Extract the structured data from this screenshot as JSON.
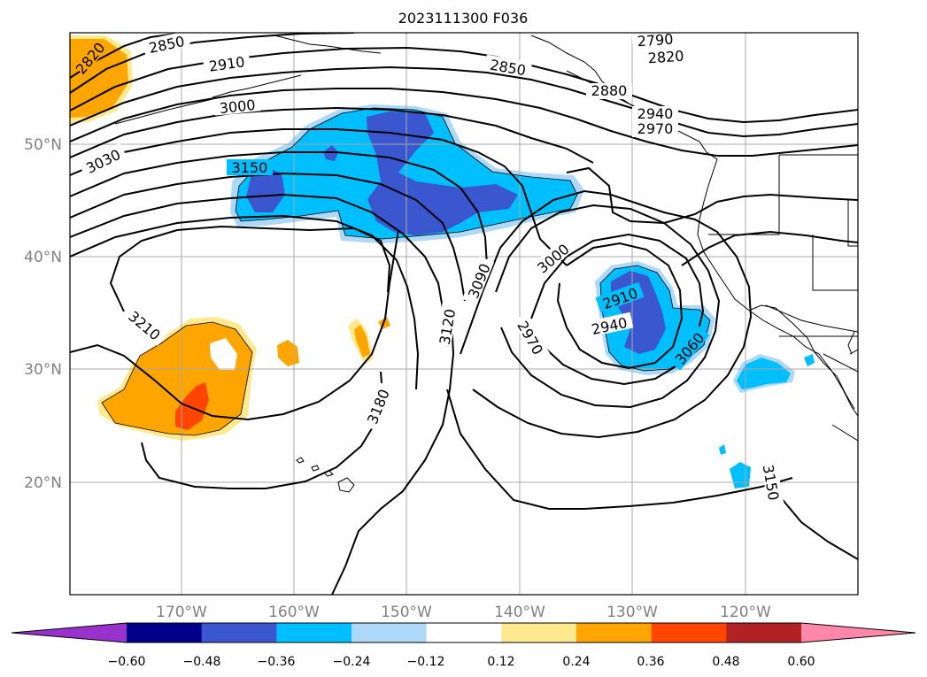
{
  "title": "2023111300 F036",
  "map": {
    "lat_labels": [
      "50°N",
      "40°N",
      "30°N",
      "20°N"
    ],
    "lon_labels": [
      "170°W",
      "160°W",
      "150°W",
      "140°W",
      "130°W",
      "120°W"
    ],
    "contour_labels": [
      "2820",
      "2850",
      "2910",
      "3000",
      "3030",
      "3150",
      "3210",
      "3180",
      "3120",
      "3090",
      "3000",
      "2970",
      "2910",
      "2940",
      "3060",
      "3150",
      "2790",
      "2820",
      "2850",
      "2880",
      "2940",
      "2970"
    ]
  },
  "colorbar": {
    "labels": [
      "−0.60",
      "−0.48",
      "−0.36",
      "−0.24",
      "−0.12",
      "0.12",
      "0.24",
      "0.36",
      "0.48",
      "0.60"
    ],
    "colors": [
      "#9932cc",
      "#00008b",
      "#3a57d0",
      "#00bfff",
      "#add8f7",
      "#ffffff",
      "#ffe98e",
      "#ffa500",
      "#ff4500",
      "#b22222",
      "#ff88aa"
    ]
  }
}
